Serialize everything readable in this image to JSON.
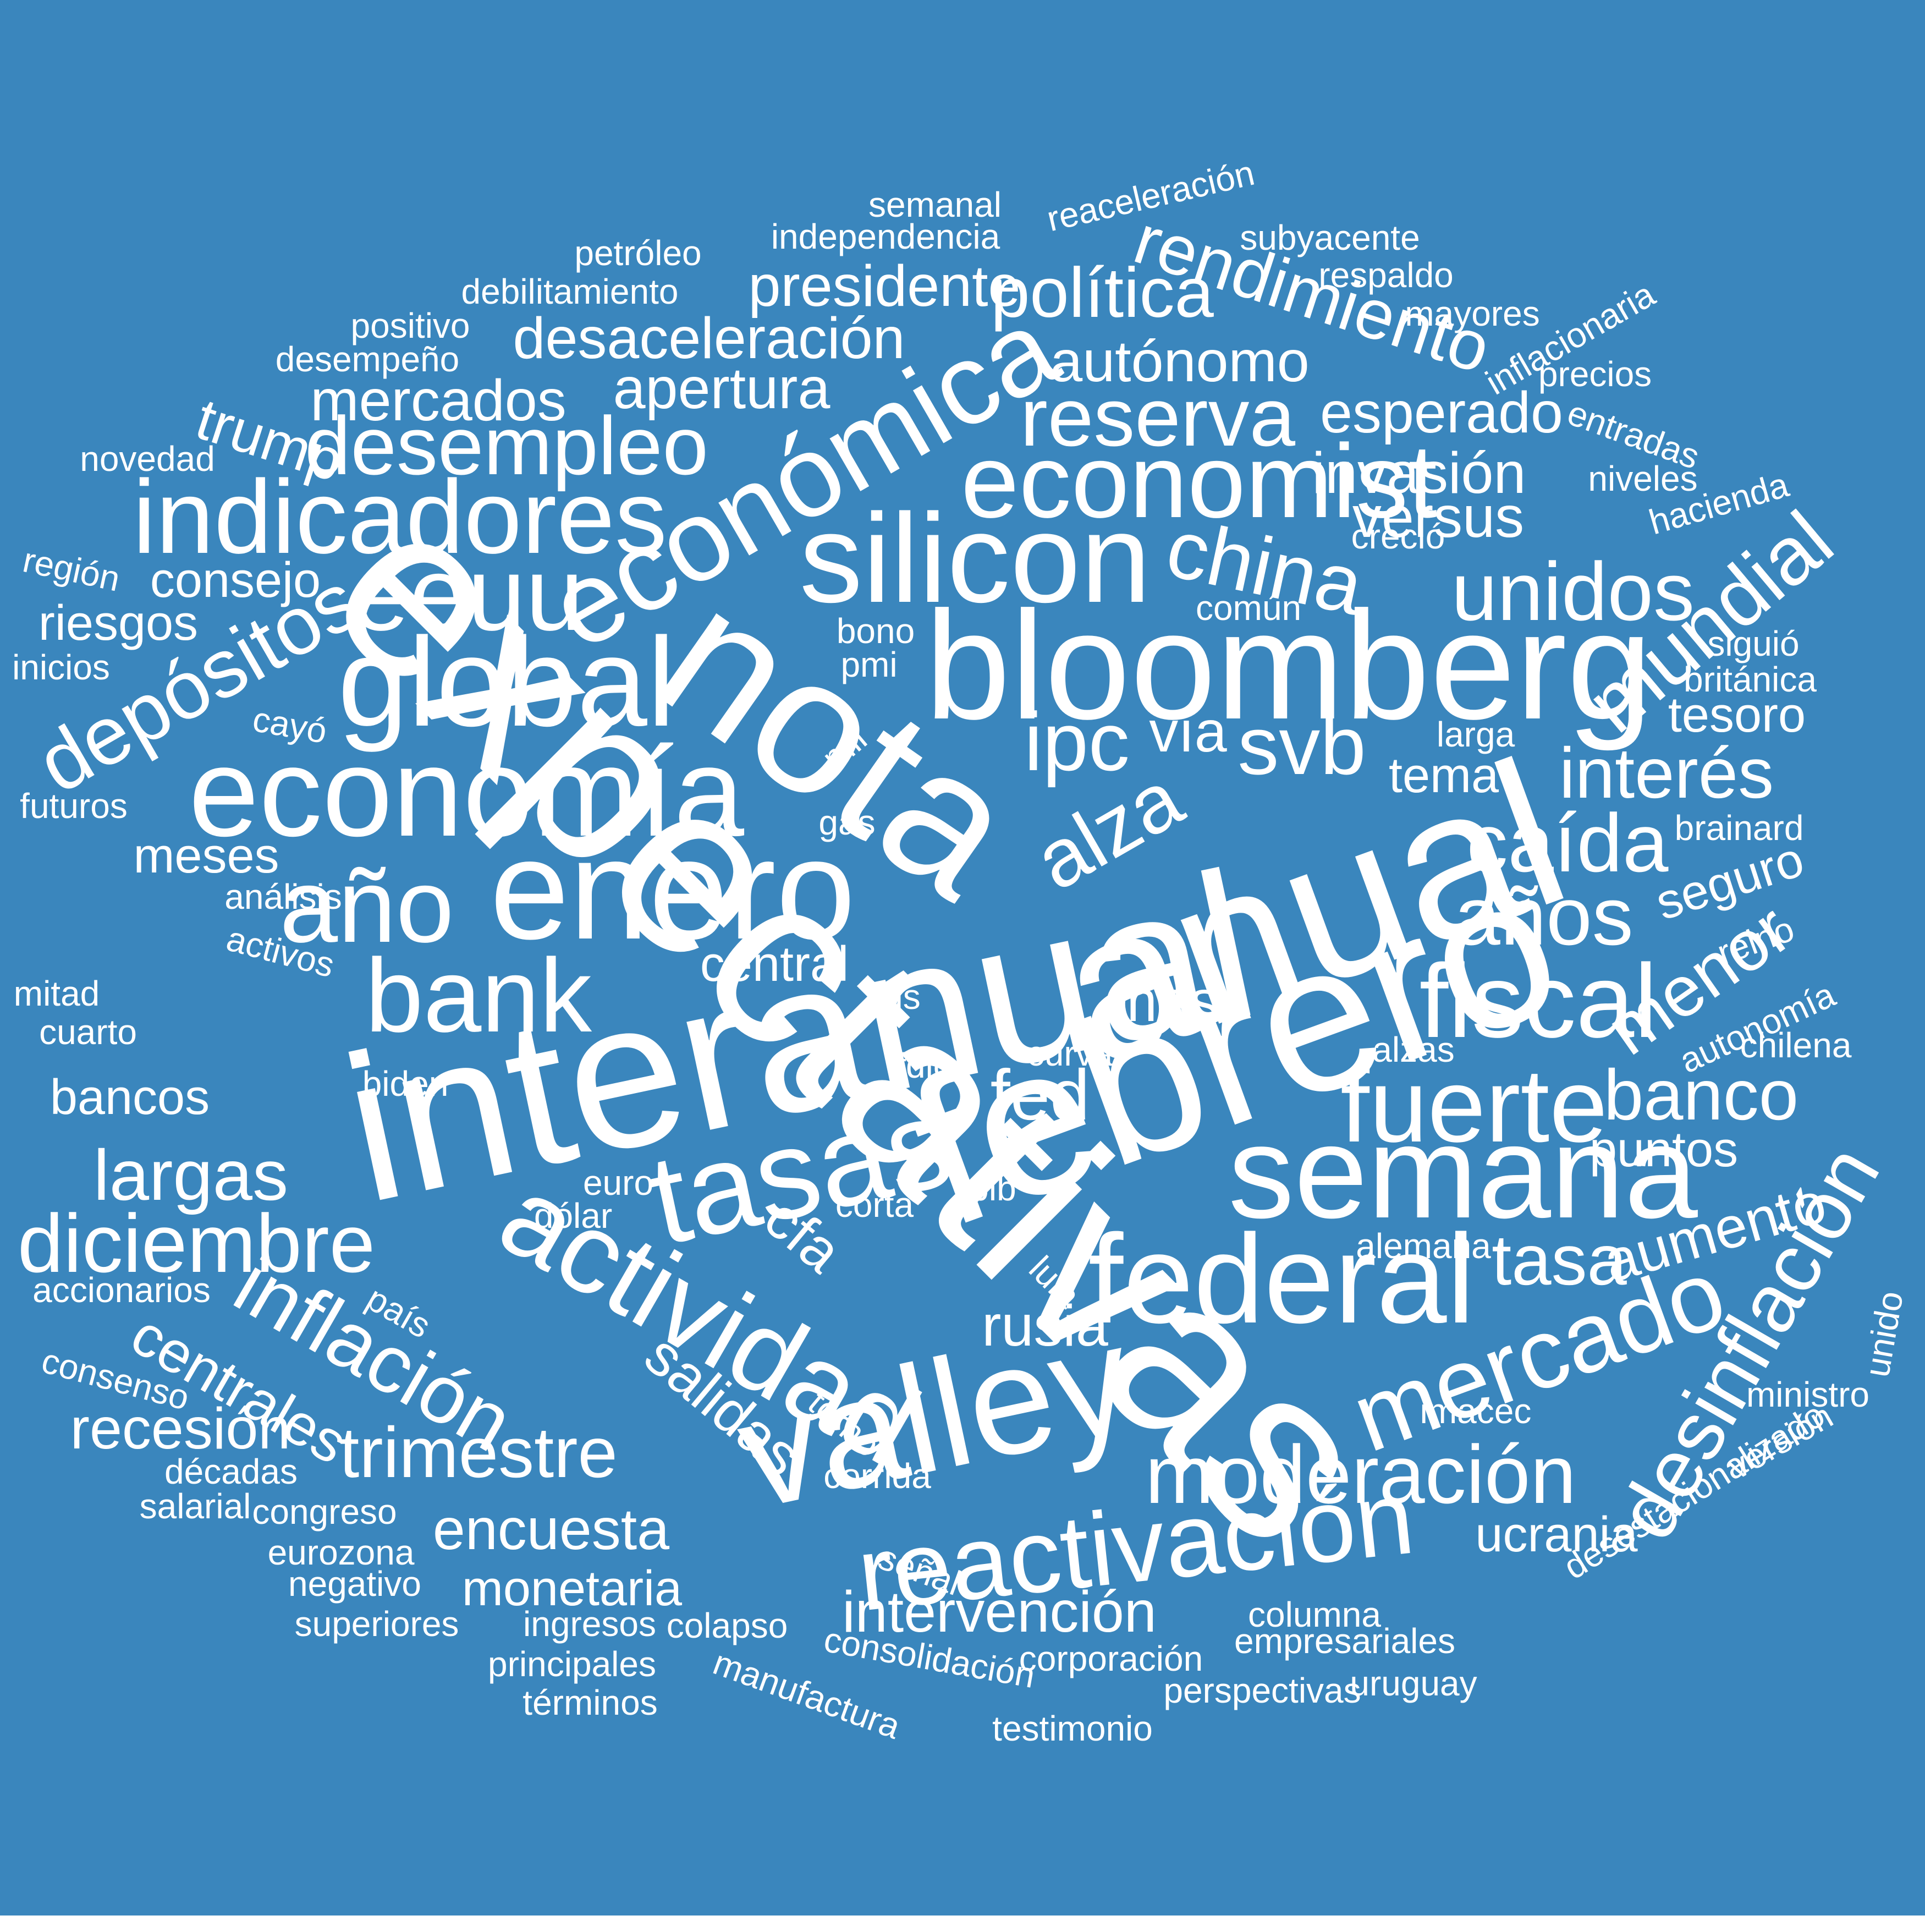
{
  "background_color": "#3a86bd",
  "text_color": "#ffffff",
  "words": [
    "semanal",
    "reaceleración",
    "independencia",
    "subyacente",
    "petróleo",
    "respaldo",
    "rendimiento",
    "presidente",
    "debilitamiento",
    "inflacionaria",
    "mayores",
    "positivo",
    "desaceleración",
    "política",
    "precios",
    "desempeño",
    "autónomo",
    "apertura",
    "reserva",
    "esperado",
    "entradas",
    "mercados",
    "trump",
    "desempleo",
    "económica",
    "novedad",
    "invasión",
    "niveles",
    "economist",
    "hacienda",
    "indicadores",
    "versus",
    "creció",
    "silicon",
    "región",
    "china",
    "consejo",
    "eeuu",
    "unidos",
    "mundial",
    "común",
    "riesgos",
    "bono",
    "siguió",
    "depósitos",
    "global",
    "bloomberg",
    "inicios",
    "pmi",
    "británica",
    "nota",
    "tesoro",
    "cayó",
    "vía",
    "mil",
    "svb",
    "larga",
    "ipc",
    "interés",
    "economía",
    "tema",
    "futuros",
    "gas",
    "alza",
    "brainard",
    "caída",
    "meses",
    "anual",
    "enero",
    "seguro",
    "año",
    "expectativas",
    "análisis",
    "años",
    "menor",
    "activos",
    "central",
    "reino",
    "mitad",
    "us",
    "autonomía",
    "bank",
    "fiscal",
    "mes",
    "cuarto",
    "chilena",
    "curva",
    "alzas",
    "fdic",
    "interanual",
    "biden",
    "fed",
    "febrero",
    "fuerte",
    "bancos",
    "banco",
    "semana",
    "largas",
    "tasas",
    "puntos",
    "euro",
    "pib",
    "corta",
    "dólar",
    "diciembre",
    "cfa",
    "aumento",
    "alemana",
    "lula",
    "federal",
    "tasa",
    "accionarios",
    "actividad",
    "inflación",
    "país",
    "unido",
    "desinflación",
    "mercado",
    "rusia",
    "consenso",
    "centrales",
    "salidas",
    "valley",
    "ministro",
    "torno",
    "imacec",
    "recesión",
    "versión",
    "desestacionalizado",
    "trimestre",
    "décadas",
    "moderación",
    "corrida",
    "salarial",
    "congreso",
    "encuesta",
    "reactivación",
    "ucrania",
    "eurozona",
    "señal",
    "negativo",
    "monetaria",
    "intervención",
    "columna",
    "superiores",
    "ingresos",
    "colapso",
    "consolidación",
    "empresariales",
    "corporación",
    "principales",
    "manufactura",
    "perspectivas",
    "uruguay",
    "términos",
    "testimonio"
  ]
}
